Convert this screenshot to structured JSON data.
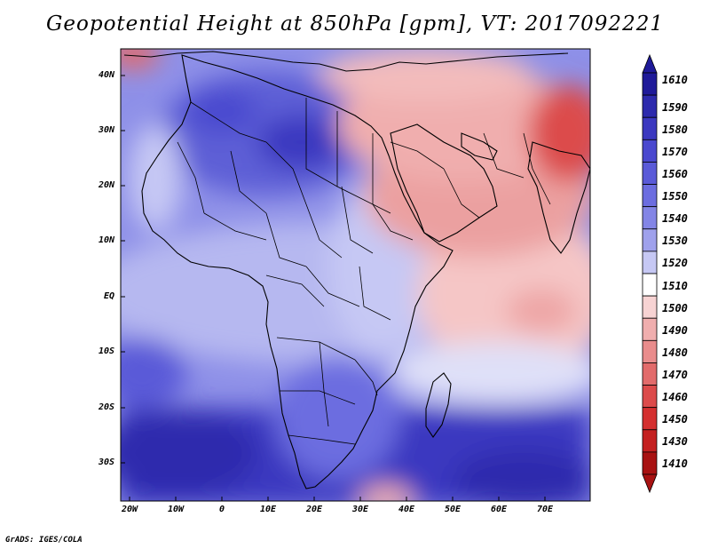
{
  "title": "Geopotential Height at 850hPa [gpm], VT: 2017092221",
  "credit": "GrADS: IGES/COLA",
  "map": {
    "variable": "Geopotential Height at 850hPa",
    "units": "gpm",
    "valid_time": "2017092221",
    "lat_labels": [
      "40N",
      "30N",
      "20N",
      "10N",
      "EQ",
      "10S",
      "20S",
      "30S"
    ],
    "lon_labels": [
      "20W",
      "10W",
      "0",
      "10E",
      "20E",
      "30E",
      "40E",
      "50E",
      "60E",
      "70E"
    ]
  },
  "colorbar": {
    "levels": [
      "1610",
      "1590",
      "1580",
      "1570",
      "1560",
      "1550",
      "1540",
      "1530",
      "1520",
      "1510",
      "1500",
      "1490",
      "1480",
      "1470",
      "1460",
      "1450",
      "1430",
      "1410"
    ],
    "colors": [
      "#1f1a99",
      "#2d2aad",
      "#3b38c0",
      "#4a48cf",
      "#5a5ad8",
      "#6c6de0",
      "#8385e6",
      "#9fa1ec",
      "#c6c8f4",
      "#ffffff",
      "#f7d3d3",
      "#f0aeae",
      "#e98c8c",
      "#e26b6b",
      "#dc4b4b",
      "#d43030",
      "#c42020",
      "#a81212"
    ]
  }
}
